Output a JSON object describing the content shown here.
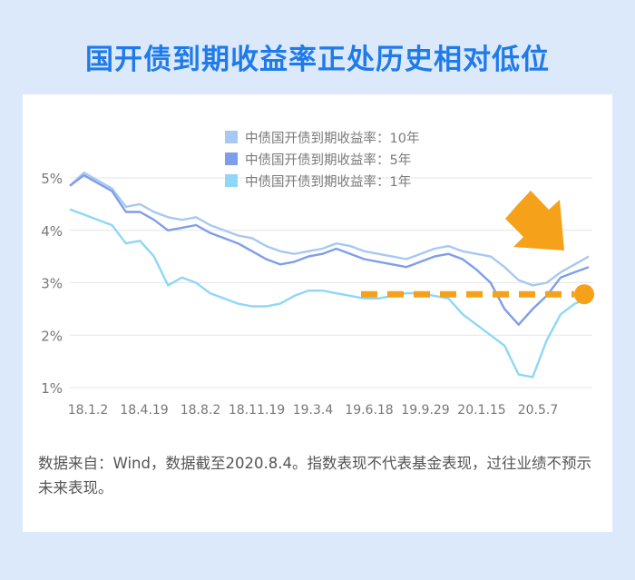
{
  "title": "国开债到期收益率正处历史相对低位",
  "note": "数据来自：Wind，数据截至2020.8.4。指数表现不代表基金表现，过往业绩不预示未来表现。",
  "colors": {
    "background": "#dce9fb",
    "title": "#1f7bea",
    "ten_year": "#a7c8f1",
    "five_year": "#7f9ee9",
    "one_year": "#8ed7f6",
    "reference_line": "#f5a11a",
    "arrow": "#f5a11a",
    "marker": "#f5a11a"
  },
  "chart_data": {
    "type": "line",
    "title": "",
    "xlabel": "",
    "ylabel": "",
    "y_unit": "%",
    "ylim": [
      1,
      5
    ],
    "y_ticks": [
      "5%",
      "4%",
      "3%",
      "2%",
      "1%"
    ],
    "x_tick_labels": [
      "18.1.2",
      "18.4.19",
      "18.8.2",
      "18.11.19",
      "19.3.4",
      "19.6.18",
      "19.9.29",
      "20.1.15",
      "20.5.7"
    ],
    "grid": "horizontal",
    "legend_position": "top-center",
    "reference_line": {
      "value": 2.78,
      "style": "dashed",
      "start_label": "19.6.18"
    },
    "annotation": "arrow pointing to latest value",
    "series": [
      {
        "name": "中债国开债到期收益率：10年",
        "values": [
          4.85,
          5.1,
          4.95,
          4.8,
          4.45,
          4.5,
          4.35,
          4.25,
          4.2,
          4.25,
          4.1,
          4.0,
          3.9,
          3.85,
          3.7,
          3.6,
          3.55,
          3.6,
          3.65,
          3.75,
          3.7,
          3.6,
          3.55,
          3.5,
          3.45,
          3.55,
          3.65,
          3.7,
          3.6,
          3.55,
          3.5,
          3.3,
          3.05,
          2.95,
          3.0,
          3.2,
          3.35,
          3.5
        ]
      },
      {
        "name": "中债国开债到期收益率：5年",
        "values": [
          4.85,
          5.05,
          4.9,
          4.75,
          4.35,
          4.35,
          4.2,
          4.0,
          4.05,
          4.1,
          3.95,
          3.85,
          3.75,
          3.6,
          3.45,
          3.35,
          3.4,
          3.5,
          3.55,
          3.65,
          3.55,
          3.45,
          3.4,
          3.35,
          3.3,
          3.4,
          3.5,
          3.55,
          3.45,
          3.25,
          3.0,
          2.5,
          2.2,
          2.5,
          2.75,
          3.1,
          3.2,
          3.3
        ]
      },
      {
        "name": "中债国开债到期收益率：1年",
        "values": [
          4.4,
          4.3,
          4.2,
          4.1,
          3.75,
          3.8,
          3.5,
          2.95,
          3.1,
          3.0,
          2.8,
          2.7,
          2.6,
          2.55,
          2.55,
          2.6,
          2.75,
          2.85,
          2.85,
          2.8,
          2.75,
          2.7,
          2.7,
          2.75,
          2.8,
          2.8,
          2.75,
          2.7,
          2.4,
          2.2,
          2.0,
          1.8,
          1.25,
          1.2,
          1.9,
          2.4,
          2.6,
          2.7
        ]
      }
    ]
  }
}
